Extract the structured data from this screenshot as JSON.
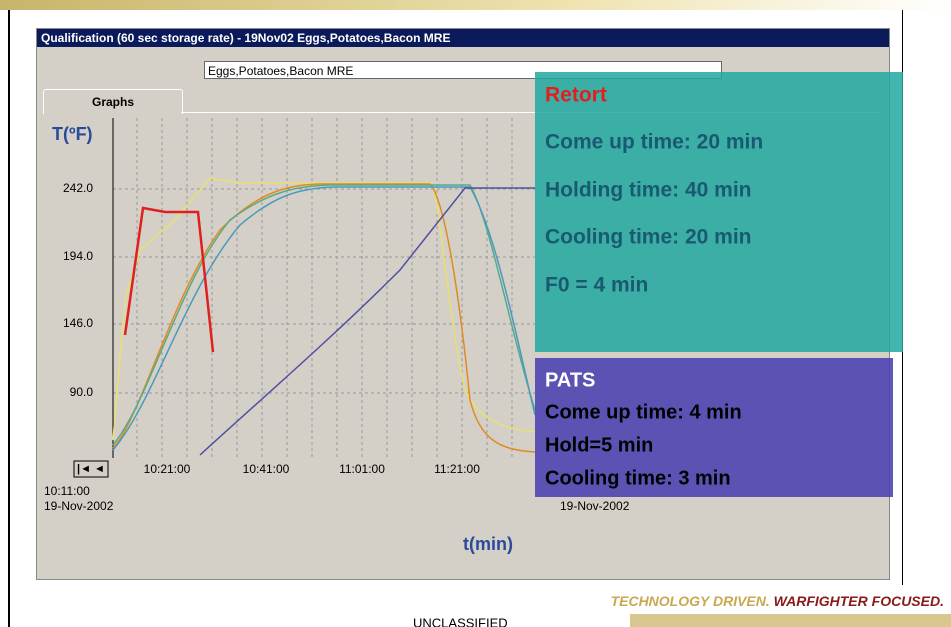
{
  "window": {
    "title": "Qualification (60 sec storage rate) - 19Nov02  Eggs,Potatoes,Bacon  MRE",
    "dropdown": "Eggs,Potatoes,Bacon  MRE",
    "tab": "Graphs",
    "y_axis_label": "T(ºF)",
    "x_axis_label": "t(min)",
    "yticks": [
      "242.0",
      "194.0",
      "146.0",
      "90.0"
    ],
    "xticks": [
      "10:21:00",
      "10:41:00",
      "11:01:00",
      "11:21:00"
    ],
    "start_time": "10:11:00",
    "start_date": "19-Nov-2002",
    "end_date": "19-Nov-2002"
  },
  "retort": {
    "heading": "Retort",
    "lines": [
      "Come up time: 20 min",
      "Holding time: 40 min",
      "Cooling time: 20 min",
      "F0 = 4 min"
    ]
  },
  "pats": {
    "heading": "PATS",
    "lines": [
      "Come up time: 4 min",
      "Hold=5 min",
      "Cooling time: 3 min"
    ]
  },
  "footer": {
    "tagline_a": "TECHNOLOGY DRIVEN.",
    "tagline_b": "WARFIGHTER FOCUSED.",
    "classification": "UNCLASSIFIED"
  }
}
